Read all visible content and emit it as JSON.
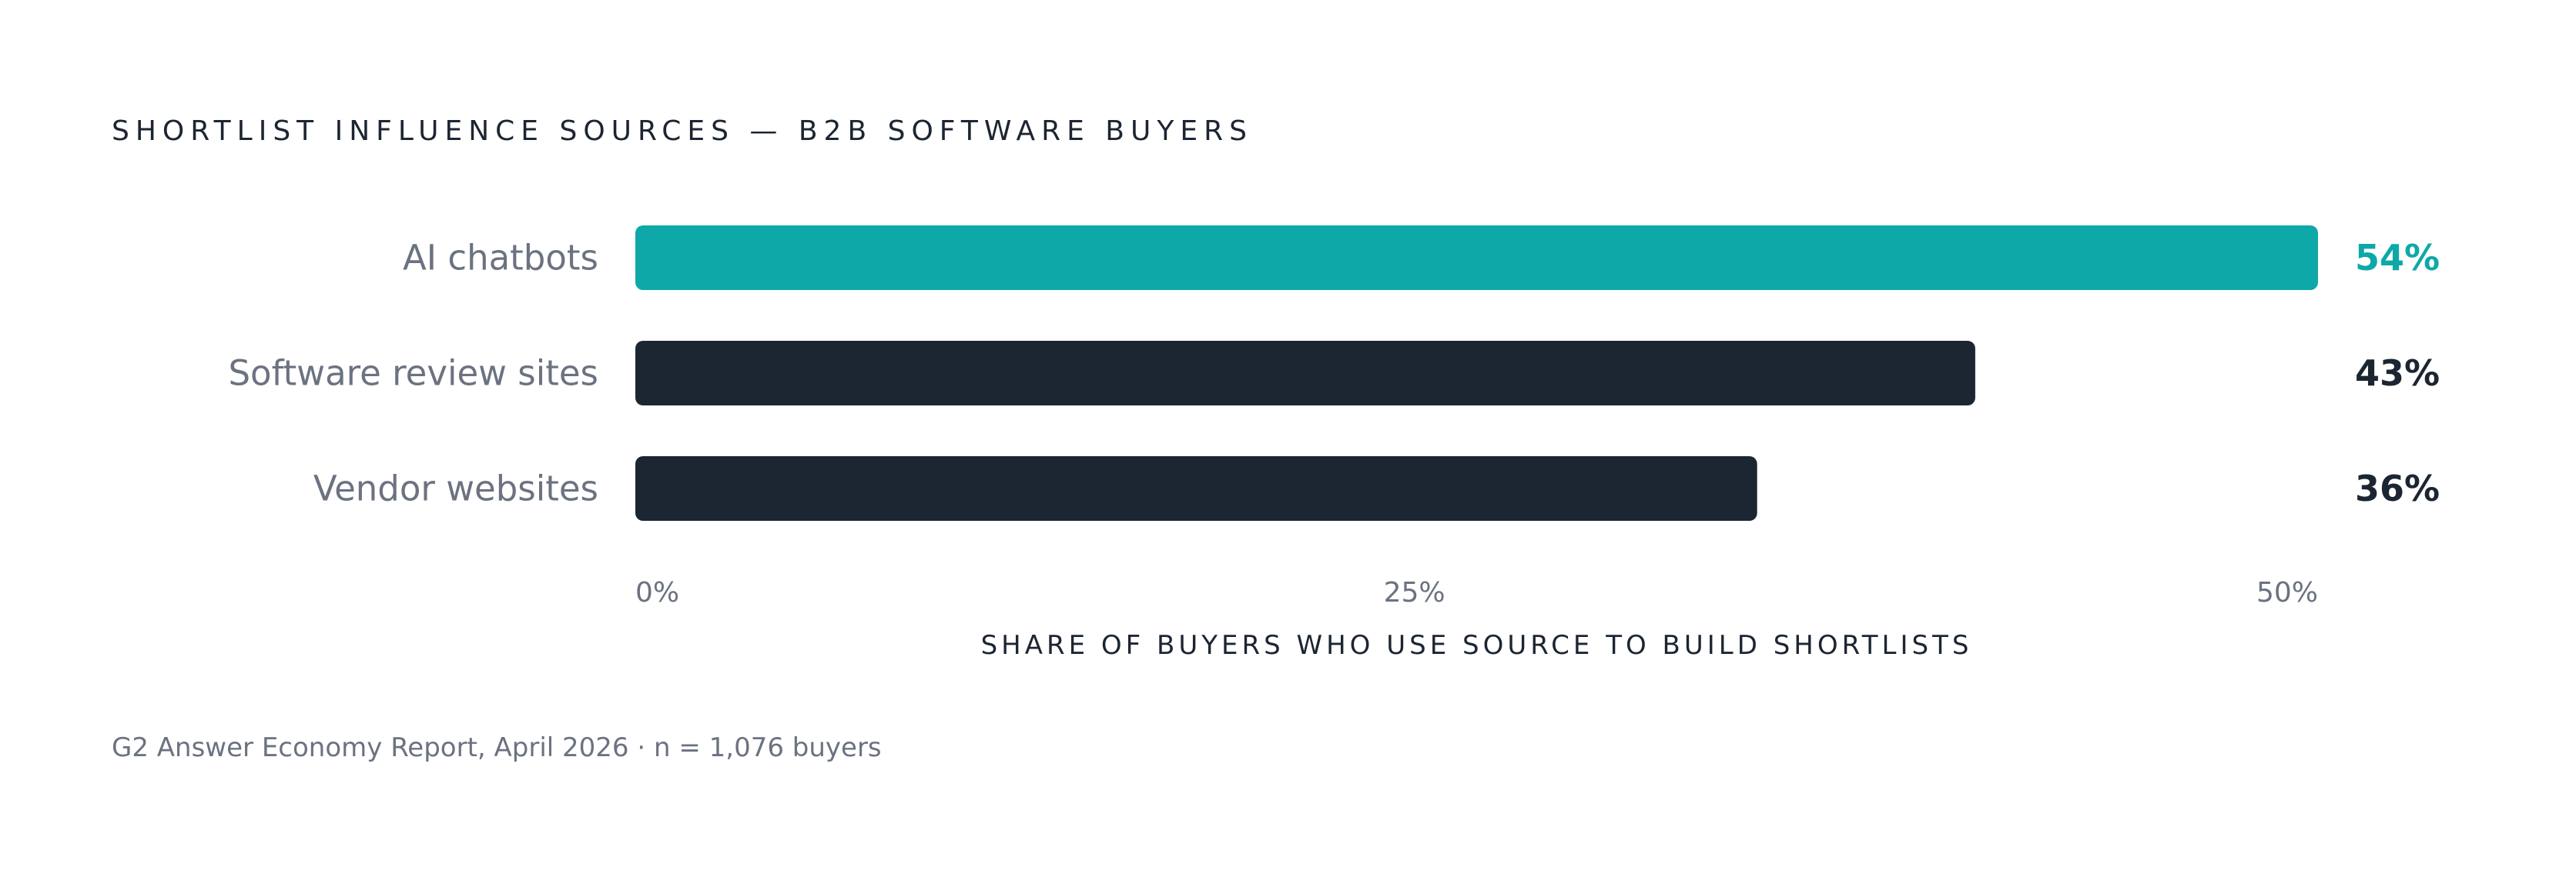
{
  "chart_data": {
    "type": "bar",
    "orientation": "horizontal",
    "title": "SHORTLIST INFLUENCE SOURCES — B2B SOFTWARE BUYERS",
    "categories": [
      "AI chatbots",
      "Software review sites",
      "Vendor websites"
    ],
    "values": [
      54,
      43,
      36
    ],
    "value_labels": [
      "54%",
      "43%",
      "36%"
    ],
    "xlabel": "SHARE OF BUYERS WHO USE SOURCE TO BUILD SHORTLISTS",
    "ylabel": "",
    "xlim": [
      0,
      54
    ],
    "ticks": [
      0,
      25,
      50
    ],
    "tick_labels": [
      "0%",
      "25%",
      "50%"
    ],
    "grid": false,
    "legend": "none",
    "source": "G2 Answer Economy Report, April 2026 · n = 1,076 buyers",
    "colors": {
      "highlight": "#0fa8a8",
      "default": "#1c2532"
    },
    "highlight_index": 0
  }
}
